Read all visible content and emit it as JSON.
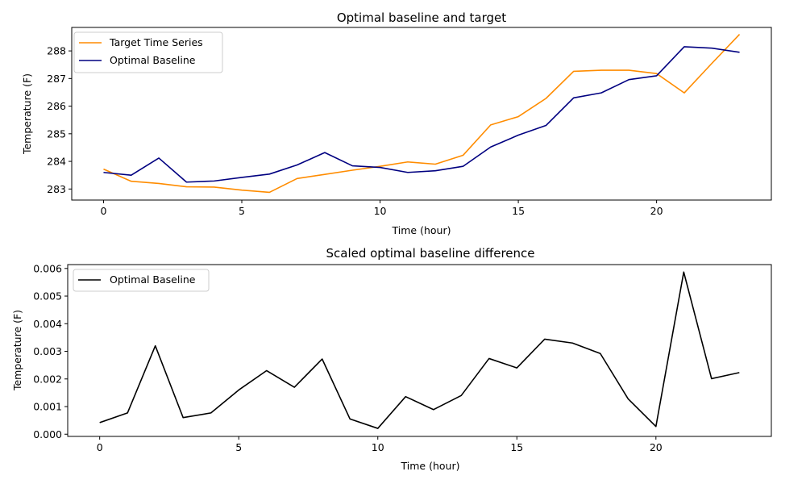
{
  "chart_data": [
    {
      "type": "line",
      "title": "Optimal baseline and target",
      "xlabel": "Time (hour)",
      "ylabel": "Temperature (F)",
      "xlim": [
        -1.15,
        24.15
      ],
      "ylim": [
        282.6,
        288.85
      ],
      "xticks": [
        0,
        5,
        10,
        15,
        20
      ],
      "yticks": [
        283,
        284,
        285,
        286,
        287,
        288
      ],
      "legend": "upper-left",
      "x": [
        0,
        1,
        2,
        3,
        4,
        5,
        6,
        7,
        8,
        9,
        10,
        11,
        12,
        13,
        14,
        15,
        16,
        17,
        18,
        19,
        20,
        21,
        22,
        23
      ],
      "series": [
        {
          "name": "Target Time Series",
          "color": "#ff8c00",
          "values": [
            283.72,
            283.28,
            283.2,
            283.08,
            283.07,
            282.96,
            282.88,
            283.38,
            283.53,
            283.68,
            283.82,
            283.98,
            283.9,
            284.22,
            285.32,
            285.62,
            286.28,
            287.26,
            287.3,
            287.3,
            287.18,
            286.48,
            287.55,
            288.6
          ]
        },
        {
          "name": "Optimal Baseline",
          "color": "#000080",
          "values": [
            283.6,
            283.5,
            284.12,
            283.25,
            283.29,
            283.42,
            283.54,
            283.87,
            284.32,
            283.84,
            283.78,
            283.6,
            283.66,
            283.82,
            284.52,
            284.95,
            285.3,
            286.3,
            286.48,
            286.96,
            287.1,
            288.15,
            288.1,
            287.95
          ]
        }
      ]
    },
    {
      "type": "line",
      "title": "Scaled optimal baseline difference",
      "xlabel": "Time (hour)",
      "ylabel": "Temperature (F)",
      "xlim": [
        -1.15,
        24.15
      ],
      "ylim": [
        -8e-05,
        0.00614
      ],
      "xticks": [
        0,
        5,
        10,
        15,
        20
      ],
      "yticks": [
        "0.000",
        "0.001",
        "0.002",
        "0.003",
        "0.004",
        "0.005",
        "0.006"
      ],
      "legend": "upper-left",
      "x": [
        0,
        1,
        2,
        3,
        4,
        5,
        6,
        7,
        8,
        9,
        10,
        11,
        12,
        13,
        14,
        15,
        16,
        17,
        18,
        19,
        20,
        21,
        22,
        23
      ],
      "series": [
        {
          "name": "Optimal Baseline",
          "color": "#000000",
          "values": [
            0.00042,
            0.00077,
            0.0032,
            0.0006,
            0.00077,
            0.0016,
            0.0023,
            0.0017,
            0.00272,
            0.00055,
            0.00021,
            0.00136,
            0.00089,
            0.0014,
            0.00274,
            0.0024,
            0.00344,
            0.0033,
            0.00292,
            0.00128,
            0.00028,
            0.00587,
            0.00201,
            0.00223
          ]
        }
      ]
    }
  ]
}
